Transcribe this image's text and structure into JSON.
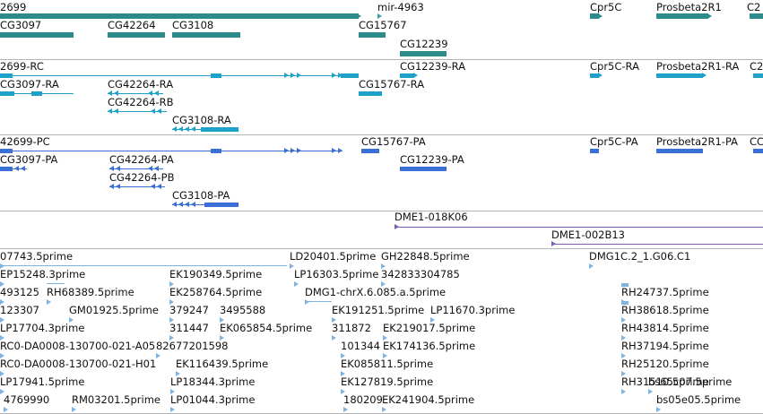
{
  "colors": {
    "gene": "#2e8b8b",
    "transcript": "#1da1c9",
    "protein": "#3a6fd6",
    "clone": "#7a5cb7",
    "est": "#7fb3e0",
    "separator": "#b4b4b4"
  },
  "tracks": {
    "genes": [
      "2699",
      "mir-4963",
      "Cpr5C",
      "Prosbeta2R1",
      "C2",
      "CG3097",
      "CG42264",
      "CG3108",
      "CG15767",
      "CG12239"
    ],
    "transcripts": [
      "2699-RC",
      "CG12239-RA",
      "Cpr5C-RA",
      "Prosbeta2R1-RA",
      "C2",
      "CG3097-RA",
      "CG42264-RA",
      "CG15767-RA",
      "CG42264-RB",
      "CG3108-RA"
    ],
    "proteins": [
      "42699-PC",
      "CG15767-PA",
      "Cpr5C-PA",
      "Prosbeta2R1-PA",
      "CC",
      "CG3097-PA",
      "CG42264-PA",
      "CG12239-PA",
      "CG42264-PB",
      "CG3108-PA"
    ],
    "clones": [
      "DME1-018K06",
      "DME1-002B13"
    ],
    "ests": [
      "07743.5prime",
      "LD20401.5prime",
      "GH22848.5prime",
      "DMG1C.2_1.G06.C1",
      "EP15248.3prime",
      "EK190349.5prime",
      "LP16303.5prime",
      "342833304785",
      "493125",
      "RH68389.5prime",
      "EK258764.5prime",
      "DMG1-chrX.6.085.a.5prime",
      "RH24737.5prime",
      "123307",
      "GM01925.5prime",
      "379247",
      "3495588",
      "EK191251.5prime",
      "LP11670.3prime",
      "RH38618.5prime",
      "LP17704.3prime",
      "311447",
      "EK065854.5prime",
      "311872",
      "EK219017.5prime",
      "RH43814.5prime",
      "RC0-DA0008-130700-021-A05",
      "82677201598",
      "101344",
      "EK174136.5prime",
      "RH37194.5prime",
      "RC0-DA0008-130700-021-H01",
      "EK116439.5prime",
      "EK085811.5prime",
      "RH25120.5prime",
      "LP17941.5prime",
      "LP18344.3prime",
      "EK127819.5prime",
      "RH31510.5prime",
      "4769990",
      "RM03201.5prime",
      "LP01044.3prime",
      "180209",
      "EK241904.5prime",
      "bs65c07.5prime",
      "bs05e05.5prime"
    ]
  }
}
